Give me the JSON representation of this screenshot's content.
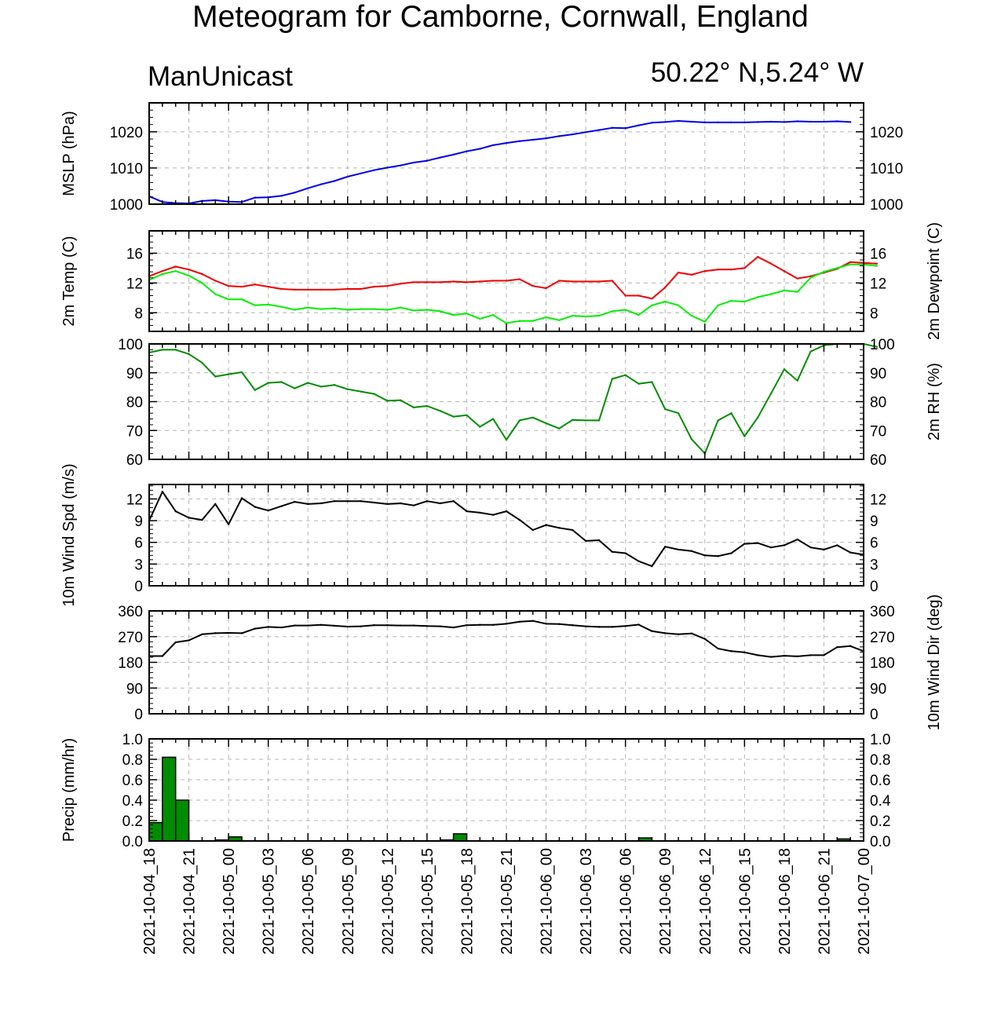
{
  "header": {
    "title": "Meteogram for Camborne, Cornwall, England",
    "model": "ManUnicast",
    "location": "50.22° N,5.24° W"
  },
  "colors": {
    "mslp": "#0000ee",
    "temp": "#ee0000",
    "dewpoint": "#00ee00",
    "rh": "#008c00",
    "wind": "#000000",
    "precip_fill": "#008c00",
    "grid": "#b4b4b4"
  },
  "chart_data": {
    "type": "line",
    "x_tick_labels": [
      "2021-10-04_18",
      "2021-10-04_21",
      "2021-10-05_00",
      "2021-10-05_03",
      "2021-10-05_06",
      "2021-10-05_09",
      "2021-10-05_12",
      "2021-10-05_15",
      "2021-10-05_18",
      "2021-10-05_21",
      "2021-10-06_00",
      "2021-10-06_03",
      "2021-10-06_06",
      "2021-10-06_09",
      "2021-10-06_12",
      "2021-10-06_15",
      "2021-10-06_18",
      "2021-10-06_21",
      "2021-10-07_00"
    ],
    "x_start": "2021-10-04_18",
    "x_step_hours": 1,
    "panels": [
      {
        "id": "mslp",
        "ylabel_left": "MSLP (hPa)",
        "ylabel_right": "",
        "ylim": [
          1000,
          1028
        ],
        "yticks": [
          1000,
          1010,
          1020
        ],
        "ytick_labels": [
          "1000",
          "1010",
          "1020"
        ],
        "series": [
          {
            "color_key": "mslp",
            "values": [
              1002.2,
              1000.6,
              1000.3,
              1000.2,
              1000.9,
              1001.1,
              1000.7,
              1000.6,
              1001.8,
              1001.9,
              1002.3,
              1003.2,
              1004.4,
              1005.5,
              1006.4,
              1007.6,
              1008.5,
              1009.4,
              1010.1,
              1010.7,
              1011.5,
              1012.0,
              1012.9,
              1013.7,
              1014.6,
              1015.3,
              1016.3,
              1016.9,
              1017.4,
              1017.8,
              1018.2,
              1018.8,
              1019.3,
              1019.9,
              1020.5,
              1021.1,
              1021.0,
              1021.8,
              1022.5,
              1022.7,
              1023.0,
              1022.8,
              1022.6,
              1022.6,
              1022.6,
              1022.6,
              1022.7,
              1022.8,
              1022.7,
              1022.9,
              1022.8,
              1022.8,
              1022.9,
              1022.7
            ]
          }
        ]
      },
      {
        "id": "temp",
        "ylabel_left": "2m Temp (C)",
        "ylabel_right": "2m Dewpoint (C)",
        "ylim": [
          5.5,
          19
        ],
        "yticks": [
          8,
          12,
          16
        ],
        "ytick_labels": [
          "8",
          "12",
          "16"
        ],
        "series": [
          {
            "color_key": "temp",
            "values": [
              12.9,
              13.6,
              14.2,
              13.8,
              13.2,
              12.3,
              11.6,
              11.5,
              11.8,
              11.5,
              11.2,
              11.1,
              11.1,
              11.1,
              11.1,
              11.2,
              11.2,
              11.5,
              11.6,
              11.9,
              12.1,
              12.1,
              12.1,
              12.2,
              12.1,
              12.2,
              12.3,
              12.3,
              12.5,
              11.6,
              11.3,
              12.3,
              12.2,
              12.2,
              12.2,
              12.3,
              10.3,
              10.3,
              9.9,
              11.4,
              13.4,
              13.1,
              13.6,
              13.8,
              13.8,
              14.0,
              15.5,
              14.6,
              13.6,
              12.6,
              12.9,
              13.4,
              13.9,
              14.8,
              14.7,
              14.6
            ]
          },
          {
            "color_key": "dewpoint",
            "values": [
              12.4,
              13.2,
              13.6,
              13.0,
              12.0,
              10.5,
              9.8,
              9.8,
              9.0,
              9.1,
              8.8,
              8.4,
              8.7,
              8.5,
              8.6,
              8.4,
              8.5,
              8.5,
              8.4,
              8.7,
              8.3,
              8.4,
              8.2,
              7.7,
              7.9,
              7.2,
              7.7,
              6.6,
              6.9,
              6.9,
              7.4,
              7.0,
              7.6,
              7.5,
              7.6,
              8.2,
              8.4,
              7.7,
              9.0,
              9.5,
              9.0,
              7.6,
              6.8,
              9.0,
              9.6,
              9.5,
              10.1,
              10.5,
              11.0,
              10.8,
              12.7,
              13.5,
              14.0,
              14.5,
              14.5,
              14.3
            ]
          }
        ]
      },
      {
        "id": "rh",
        "ylabel_left": "",
        "ylabel_right": "2m RH (%)",
        "ylim": [
          60,
          100
        ],
        "yticks": [
          60,
          70,
          80,
          90,
          100
        ],
        "ytick_labels": [
          "60",
          "70",
          "80",
          "90",
          "100"
        ],
        "series": [
          {
            "color_key": "rh",
            "values": [
              97.0,
              98.0,
              98.0,
              96.5,
              93.5,
              88.7,
              89.5,
              90.2,
              84.0,
              86.5,
              86.8,
              84.6,
              86.5,
              85.2,
              85.8,
              84.3,
              83.5,
              82.7,
              80.3,
              80.5,
              78.0,
              78.5,
              76.8,
              74.8,
              75.3,
              71.3,
              74.0,
              66.8,
              73.5,
              74.5,
              72.5,
              70.7,
              73.7,
              73.5,
              73.5,
              87.9,
              89.2,
              86.2,
              86.8,
              77.4,
              76.0,
              67.0,
              62.0,
              73.5,
              76.0,
              68.0,
              74.5,
              82.8,
              91.2,
              87.3,
              97.4,
              99.5,
              100.0,
              100.0,
              100.0,
              99.0
            ]
          }
        ]
      },
      {
        "id": "wspd",
        "ylabel_left": "10m Wind Spd (m/s)",
        "ylabel_right": "",
        "ylim": [
          0,
          14
        ],
        "yticks": [
          0,
          3,
          6,
          9,
          12
        ],
        "ytick_labels": [
          "0",
          "3",
          "6",
          "9",
          "12"
        ],
        "series": [
          {
            "color_key": "wind",
            "values": [
              9.0,
              13.0,
              10.3,
              9.4,
              9.1,
              11.3,
              8.5,
              12.1,
              10.9,
              10.4,
              11.0,
              11.6,
              11.3,
              11.4,
              11.7,
              11.7,
              11.7,
              11.5,
              11.3,
              11.4,
              11.1,
              11.7,
              11.4,
              11.7,
              10.3,
              10.1,
              9.8,
              10.3,
              9.1,
              7.7,
              8.4,
              8.0,
              7.7,
              6.2,
              6.3,
              4.7,
              4.5,
              3.4,
              2.7,
              5.4,
              5.0,
              4.8,
              4.2,
              4.1,
              4.5,
              5.8,
              5.9,
              5.3,
              5.6,
              6.4,
              5.3,
              5.0,
              5.6,
              4.6,
              4.3
            ]
          }
        ]
      },
      {
        "id": "wdir",
        "ylabel_left": "",
        "ylabel_right": "10m Wind Dir (deg)",
        "ylim": [
          0,
          360
        ],
        "yticks": [
          0,
          90,
          180,
          270,
          360
        ],
        "ytick_labels": [
          "0",
          "90",
          "180",
          "270",
          "360"
        ],
        "series": [
          {
            "color_key": "wind",
            "values": [
              202,
              202,
              250,
              257,
              278,
              282,
              283,
              282,
              298,
              304,
              302,
              309,
              309,
              311,
              308,
              305,
              306,
              310,
              310,
              309,
              309,
              307,
              306,
              302,
              310,
              311,
              311,
              315,
              322,
              325,
              315,
              314,
              310,
              306,
              304,
              304,
              307,
              312,
              289,
              282,
              278,
              281,
              262,
              228,
              219,
              215,
              205,
              199,
              203,
              201,
              205,
              205,
              233,
              237,
              219
            ]
          }
        ]
      },
      {
        "id": "precip",
        "ylabel_left": "Precip (mm/hr)",
        "ylabel_right": "",
        "ylim": [
          0,
          1.0
        ],
        "yticks": [
          0,
          0.2,
          0.4,
          0.6,
          0.8,
          1.0
        ],
        "ytick_labels": [
          "0.0",
          "0.2",
          "0.4",
          "0.6",
          "0.8",
          "1.0"
        ],
        "bars": [
          {
            "hour": 0,
            "value": 0.18
          },
          {
            "hour": 1,
            "value": 0.82
          },
          {
            "hour": 2,
            "value": 0.4
          },
          {
            "hour": 5,
            "value": 0.01
          },
          {
            "hour": 6,
            "value": 0.04
          },
          {
            "hour": 22,
            "value": 0.01
          },
          {
            "hour": 23,
            "value": 0.07
          },
          {
            "hour": 37,
            "value": 0.03
          },
          {
            "hour": 52,
            "value": 0.02
          }
        ]
      }
    ]
  }
}
